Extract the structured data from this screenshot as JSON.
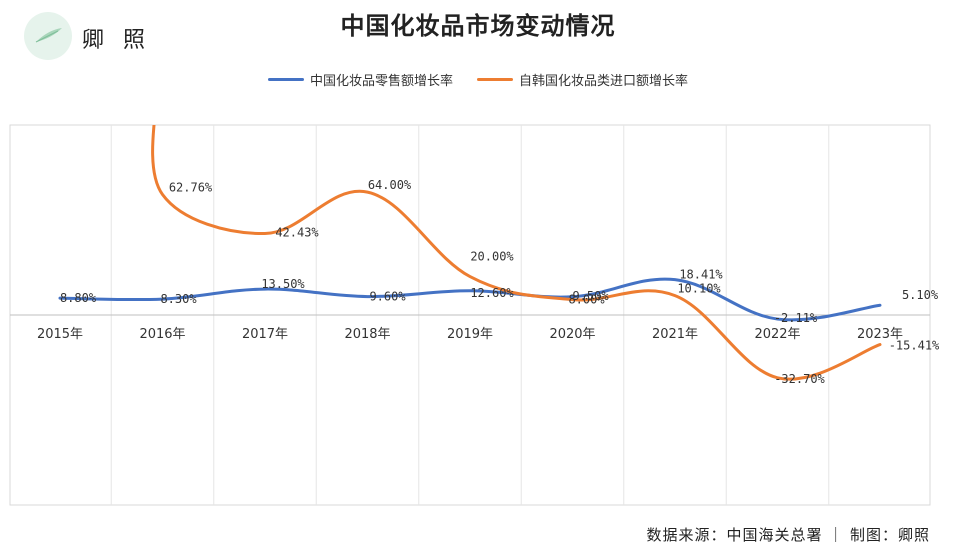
{
  "brand": {
    "name": "卿 照",
    "icon": "leaf-icon"
  },
  "footer": {
    "source": "数据来源：中国海关总署 ｜ 制图：卿照"
  },
  "colors": {
    "blue": "#4472c4",
    "orange": "#ed7d31",
    "grid": "#d9d9d9",
    "logo_bg": "#e6f3ec"
  },
  "chart_data": {
    "type": "line",
    "title": "中国化妆品市场变动情况",
    "categories": [
      "2015年",
      "2016年",
      "2017年",
      "2018年",
      "2019年",
      "2020年",
      "2021年",
      "2022年",
      "2023年"
    ],
    "series": [
      {
        "name": "中国化妆品零售额增长率",
        "color": "#4472c4",
        "values": [
          8.8,
          8.3,
          13.5,
          9.6,
          12.6,
          9.5,
          18.41,
          -2.11,
          5.1
        ],
        "labels": [
          "8.80%",
          "8.30%",
          "13.50%",
          "9.60%",
          "12.60%",
          "9.50%",
          "18.41%",
          "-2.11%",
          "5.10%"
        ]
      },
      {
        "name": "自韩国化妆品类进口额增长率",
        "color": "#ed7d31",
        "values": [
          null,
          62.76,
          42.43,
          64.0,
          20.0,
          8.0,
          10.1,
          -32.7,
          -15.41
        ],
        "labels": [
          "",
          "62.76%",
          "42.43%",
          "64.00%",
          "20.00%",
          "8.00%",
          "10.10%",
          "-32.70%",
          "-15.41%"
        ]
      }
    ],
    "ylim": [
      -100,
      110
    ],
    "grid": true,
    "legend": "top-center"
  }
}
